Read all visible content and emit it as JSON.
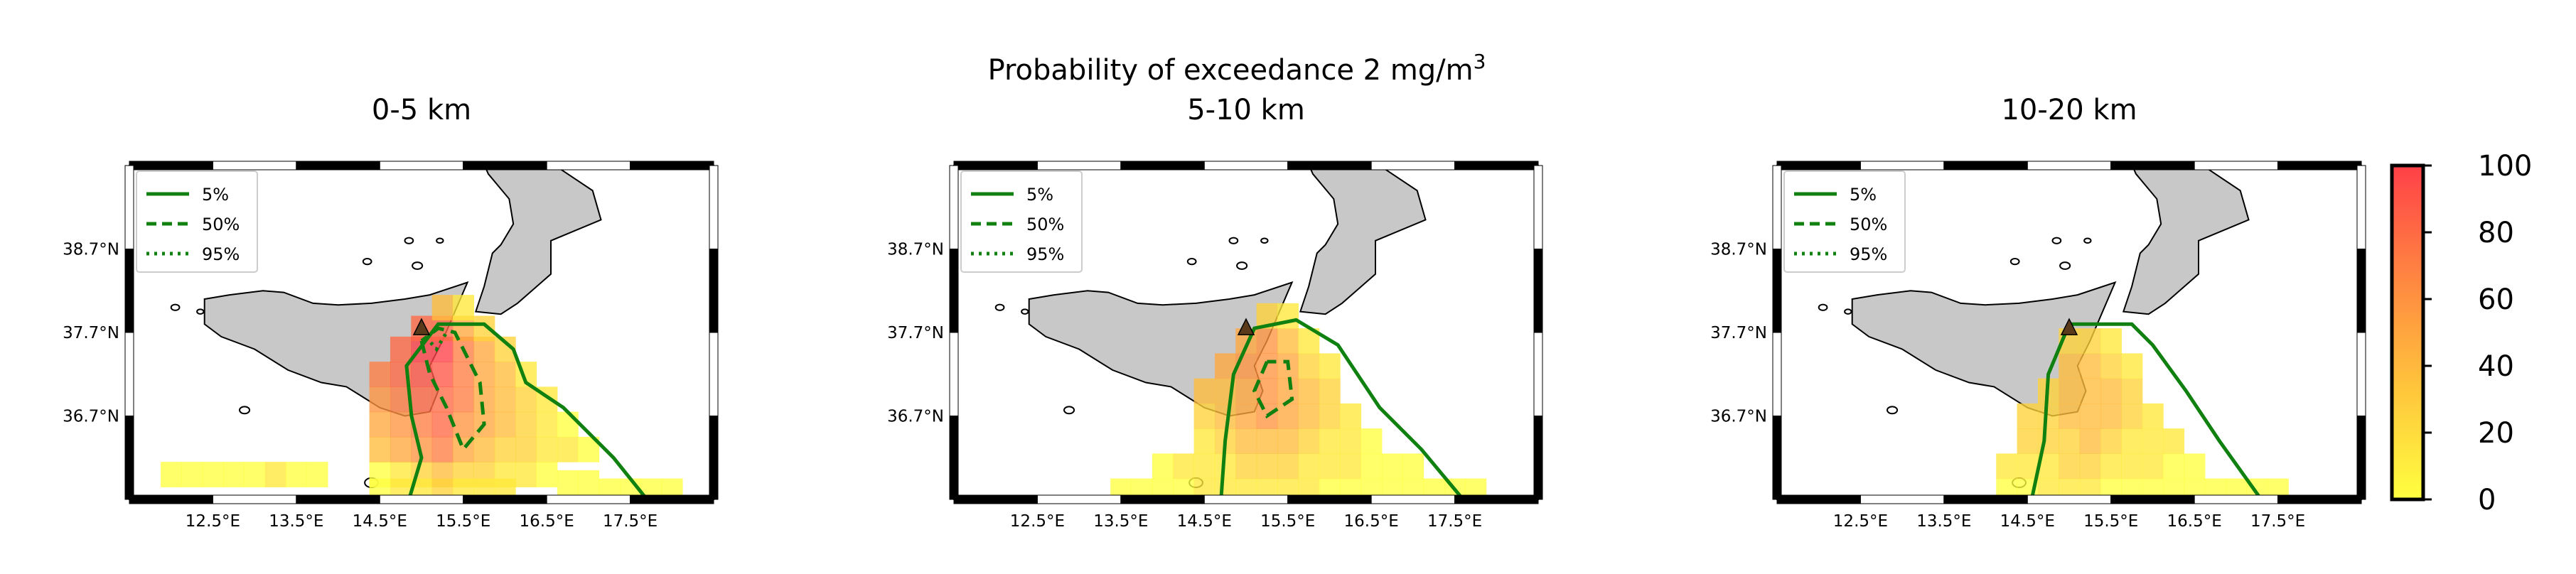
{
  "figure": {
    "suptitle_main": "Probability of exceedance 2 mg/m",
    "suptitle_sup": "3"
  },
  "colors": {
    "land": "#c8c8c8",
    "coast": "#000000",
    "contour": "#108010",
    "volcano": "#5a3a1a",
    "colormap": [
      "#ffff40",
      "#ffe93a",
      "#ffd33a",
      "#ffbd3c",
      "#ffa83e",
      "#ff9340",
      "#ff7e42",
      "#ff6944",
      "#ff5446",
      "#ff4048"
    ]
  },
  "legend": {
    "items": [
      {
        "label": "5%",
        "style": "solid"
      },
      {
        "label": "50%",
        "style": "dashed"
      },
      {
        "label": "95%",
        "style": "dotted"
      }
    ]
  },
  "colorbar": {
    "ticks": [
      "0",
      "20",
      "40",
      "60",
      "80",
      "100"
    ],
    "range": [
      0,
      100
    ]
  },
  "chart_data": [
    {
      "type": "heatmap",
      "title": "0-5 km",
      "x_ticks": [
        "12.5°E",
        "13.5°E",
        "14.5°E",
        "15.5°E",
        "16.5°E",
        "17.5°E"
      ],
      "y_ticks": [
        "38.7°N",
        "37.7°N",
        "36.7°N"
      ],
      "xlim": [
        11.5,
        18.5
      ],
      "ylim": [
        35.7,
        39.7
      ],
      "cells": [
        [
          14.5,
          36.0,
          8
        ],
        [
          14.5,
          35.8,
          5
        ],
        [
          14.75,
          36.0,
          15
        ],
        [
          14.75,
          35.8,
          10
        ],
        [
          15.0,
          36.0,
          20
        ],
        [
          15.0,
          35.8,
          12
        ],
        [
          15.25,
          36.0,
          30
        ],
        [
          15.25,
          35.8,
          20
        ],
        [
          15.5,
          36.0,
          25
        ],
        [
          15.5,
          35.8,
          18
        ],
        [
          15.75,
          36.0,
          22
        ],
        [
          15.75,
          35.8,
          15
        ],
        [
          16.0,
          36.0,
          15
        ],
        [
          16.0,
          35.8,
          10
        ],
        [
          16.25,
          36.0,
          10
        ],
        [
          16.5,
          36.0,
          8
        ],
        [
          16.75,
          35.9,
          6
        ],
        [
          17.0,
          35.9,
          5
        ],
        [
          17.25,
          35.8,
          4
        ],
        [
          17.5,
          35.8,
          3
        ],
        [
          17.75,
          35.8,
          3
        ],
        [
          18.0,
          35.8,
          2
        ],
        [
          14.5,
          36.3,
          30
        ],
        [
          14.75,
          36.3,
          40
        ],
        [
          15.0,
          36.3,
          55
        ],
        [
          15.25,
          36.3,
          62
        ],
        [
          15.5,
          36.3,
          48
        ],
        [
          15.75,
          36.3,
          35
        ],
        [
          16.0,
          36.3,
          25
        ],
        [
          16.25,
          36.3,
          20
        ],
        [
          16.5,
          36.3,
          15
        ],
        [
          16.75,
          36.3,
          10
        ],
        [
          17.0,
          36.3,
          6
        ],
        [
          14.5,
          36.6,
          45
        ],
        [
          14.75,
          36.6,
          55
        ],
        [
          15.0,
          36.6,
          65
        ],
        [
          15.25,
          36.6,
          72
        ],
        [
          15.5,
          36.6,
          55
        ],
        [
          15.75,
          36.6,
          40
        ],
        [
          16.0,
          36.6,
          30
        ],
        [
          16.25,
          36.6,
          22
        ],
        [
          16.5,
          36.6,
          15
        ],
        [
          16.75,
          36.6,
          8
        ],
        [
          14.5,
          36.9,
          55
        ],
        [
          14.75,
          36.9,
          65
        ],
        [
          15.0,
          36.9,
          75
        ],
        [
          15.25,
          36.9,
          78
        ],
        [
          15.5,
          36.9,
          60
        ],
        [
          15.75,
          36.9,
          45
        ],
        [
          16.0,
          36.9,
          32
        ],
        [
          16.25,
          36.9,
          22
        ],
        [
          16.5,
          36.9,
          12
        ],
        [
          14.5,
          37.2,
          62
        ],
        [
          14.75,
          37.2,
          72
        ],
        [
          15.0,
          37.2,
          82
        ],
        [
          15.25,
          37.2,
          85
        ],
        [
          15.5,
          37.2,
          65
        ],
        [
          15.75,
          37.2,
          48
        ],
        [
          16.0,
          37.2,
          30
        ],
        [
          16.25,
          37.2,
          18
        ],
        [
          14.75,
          37.5,
          78
        ],
        [
          15.0,
          37.5,
          92
        ],
        [
          15.25,
          37.5,
          90
        ],
        [
          15.5,
          37.5,
          68
        ],
        [
          15.75,
          37.5,
          40
        ],
        [
          16.0,
          37.5,
          22
        ],
        [
          15.0,
          37.75,
          75
        ],
        [
          15.25,
          37.75,
          70
        ],
        [
          15.5,
          37.75,
          45
        ],
        [
          15.75,
          37.75,
          20
        ],
        [
          15.25,
          38.0,
          30
        ],
        [
          15.5,
          38.0,
          15
        ],
        [
          12.0,
          36.0,
          3
        ],
        [
          12.25,
          36.0,
          3
        ],
        [
          12.5,
          36.0,
          5
        ],
        [
          12.75,
          36.0,
          6
        ],
        [
          13.0,
          36.0,
          8
        ],
        [
          13.25,
          36.0,
          10
        ],
        [
          13.5,
          36.0,
          6
        ],
        [
          13.75,
          36.0,
          8
        ]
      ]
    },
    {
      "type": "heatmap",
      "title": "5-10 km",
      "x_ticks": [
        "12.5°E",
        "13.5°E",
        "14.5°E",
        "15.5°E",
        "16.5°E",
        "17.5°E"
      ],
      "y_ticks": [
        "38.7°N",
        "37.7°N",
        "36.7°N"
      ],
      "xlim": [
        11.5,
        18.5
      ],
      "ylim": [
        35.7,
        39.7
      ],
      "cells": [
        [
          13.5,
          35.8,
          4
        ],
        [
          13.75,
          35.8,
          5
        ],
        [
          14.0,
          35.8,
          6
        ],
        [
          14.25,
          35.8,
          8
        ],
        [
          14.5,
          35.8,
          10
        ],
        [
          14.75,
          35.8,
          12
        ],
        [
          15.0,
          35.8,
          12
        ],
        [
          15.25,
          35.8,
          12
        ],
        [
          15.5,
          35.8,
          10
        ],
        [
          15.75,
          35.8,
          10
        ],
        [
          16.0,
          35.8,
          8
        ],
        [
          16.25,
          35.8,
          8
        ],
        [
          16.5,
          35.8,
          6
        ],
        [
          16.75,
          35.8,
          5
        ],
        [
          17.0,
          35.8,
          4
        ],
        [
          17.25,
          35.8,
          3
        ],
        [
          17.5,
          35.8,
          3
        ],
        [
          17.75,
          35.8,
          2
        ],
        [
          14.0,
          36.1,
          6
        ],
        [
          14.25,
          36.1,
          10
        ],
        [
          14.5,
          36.1,
          14
        ],
        [
          14.75,
          36.1,
          18
        ],
        [
          15.0,
          36.1,
          22
        ],
        [
          15.25,
          36.1,
          25
        ],
        [
          15.5,
          36.1,
          22
        ],
        [
          15.75,
          36.1,
          18
        ],
        [
          16.0,
          36.1,
          14
        ],
        [
          16.25,
          36.1,
          10
        ],
        [
          16.5,
          36.1,
          8
        ],
        [
          16.75,
          36.1,
          6
        ],
        [
          17.0,
          36.1,
          4
        ],
        [
          14.5,
          36.4,
          18
        ],
        [
          14.75,
          36.4,
          25
        ],
        [
          15.0,
          36.4,
          32
        ],
        [
          15.25,
          36.4,
          38
        ],
        [
          15.5,
          36.4,
          32
        ],
        [
          15.75,
          36.4,
          25
        ],
        [
          16.0,
          36.4,
          18
        ],
        [
          16.25,
          36.4,
          12
        ],
        [
          16.5,
          36.4,
          8
        ],
        [
          14.5,
          36.7,
          25
        ],
        [
          14.75,
          36.7,
          32
        ],
        [
          15.0,
          36.7,
          42
        ],
        [
          15.25,
          36.7,
          50
        ],
        [
          15.5,
          36.7,
          42
        ],
        [
          15.75,
          36.7,
          30
        ],
        [
          16.0,
          36.7,
          22
        ],
        [
          16.25,
          36.7,
          14
        ],
        [
          14.5,
          37.0,
          30
        ],
        [
          14.75,
          37.0,
          38
        ],
        [
          15.0,
          37.0,
          48
        ],
        [
          15.25,
          37.0,
          55
        ],
        [
          15.5,
          37.0,
          45
        ],
        [
          15.75,
          37.0,
          32
        ],
        [
          16.0,
          37.0,
          20
        ],
        [
          14.75,
          37.3,
          40
        ],
        [
          15.0,
          37.3,
          52
        ],
        [
          15.25,
          37.3,
          58
        ],
        [
          15.5,
          37.3,
          45
        ],
        [
          15.75,
          37.3,
          28
        ],
        [
          16.0,
          37.3,
          15
        ],
        [
          15.0,
          37.6,
          45
        ],
        [
          15.25,
          37.6,
          50
        ],
        [
          15.5,
          37.6,
          35
        ],
        [
          15.75,
          37.6,
          18
        ],
        [
          15.25,
          37.9,
          22
        ],
        [
          15.5,
          37.9,
          12
        ]
      ]
    },
    {
      "type": "heatmap",
      "title": "10-20 km",
      "x_ticks": [
        "12.5°E",
        "13.5°E",
        "14.5°E",
        "15.5°E",
        "16.5°E",
        "17.5°E"
      ],
      "y_ticks": [
        "38.7°N",
        "37.7°N",
        "36.7°N"
      ],
      "xlim": [
        11.5,
        18.5
      ],
      "ylim": [
        35.7,
        39.7
      ],
      "cells": [
        [
          14.25,
          35.8,
          6
        ],
        [
          14.5,
          35.8,
          8
        ],
        [
          14.75,
          35.8,
          10
        ],
        [
          15.0,
          35.8,
          10
        ],
        [
          15.25,
          35.8,
          10
        ],
        [
          15.5,
          35.8,
          8
        ],
        [
          15.75,
          35.8,
          8
        ],
        [
          16.0,
          35.8,
          6
        ],
        [
          16.25,
          35.8,
          6
        ],
        [
          16.5,
          35.8,
          5
        ],
        [
          16.75,
          35.8,
          4
        ],
        [
          17.0,
          35.8,
          3
        ],
        [
          17.25,
          35.8,
          3
        ],
        [
          17.5,
          35.8,
          2
        ],
        [
          14.25,
          36.1,
          10
        ],
        [
          14.5,
          36.1,
          14
        ],
        [
          14.75,
          36.1,
          18
        ],
        [
          15.0,
          36.1,
          20
        ],
        [
          15.25,
          36.1,
          20
        ],
        [
          15.5,
          36.1,
          16
        ],
        [
          15.75,
          36.1,
          12
        ],
        [
          16.0,
          36.1,
          10
        ],
        [
          16.25,
          36.1,
          8
        ],
        [
          16.5,
          36.1,
          6
        ],
        [
          14.5,
          36.4,
          20
        ],
        [
          14.75,
          36.4,
          24
        ],
        [
          15.0,
          36.4,
          28
        ],
        [
          15.25,
          36.4,
          30
        ],
        [
          15.5,
          36.4,
          25
        ],
        [
          15.75,
          36.4,
          18
        ],
        [
          16.0,
          36.4,
          14
        ],
        [
          16.25,
          36.4,
          10
        ],
        [
          14.5,
          36.7,
          24
        ],
        [
          14.75,
          36.7,
          28
        ],
        [
          15.0,
          36.7,
          34
        ],
        [
          15.25,
          36.7,
          36
        ],
        [
          15.5,
          36.7,
          30
        ],
        [
          15.75,
          36.7,
          22
        ],
        [
          16.0,
          36.7,
          16
        ],
        [
          14.75,
          37.0,
          28
        ],
        [
          15.0,
          37.0,
          34
        ],
        [
          15.25,
          37.0,
          38
        ],
        [
          15.5,
          37.0,
          30
        ],
        [
          15.75,
          37.0,
          20
        ],
        [
          15.0,
          37.3,
          30
        ],
        [
          15.25,
          37.3,
          34
        ],
        [
          15.5,
          37.3,
          24
        ],
        [
          15.75,
          37.3,
          14
        ],
        [
          15.0,
          37.6,
          22
        ],
        [
          15.25,
          37.6,
          24
        ],
        [
          15.5,
          37.6,
          16
        ]
      ]
    }
  ]
}
